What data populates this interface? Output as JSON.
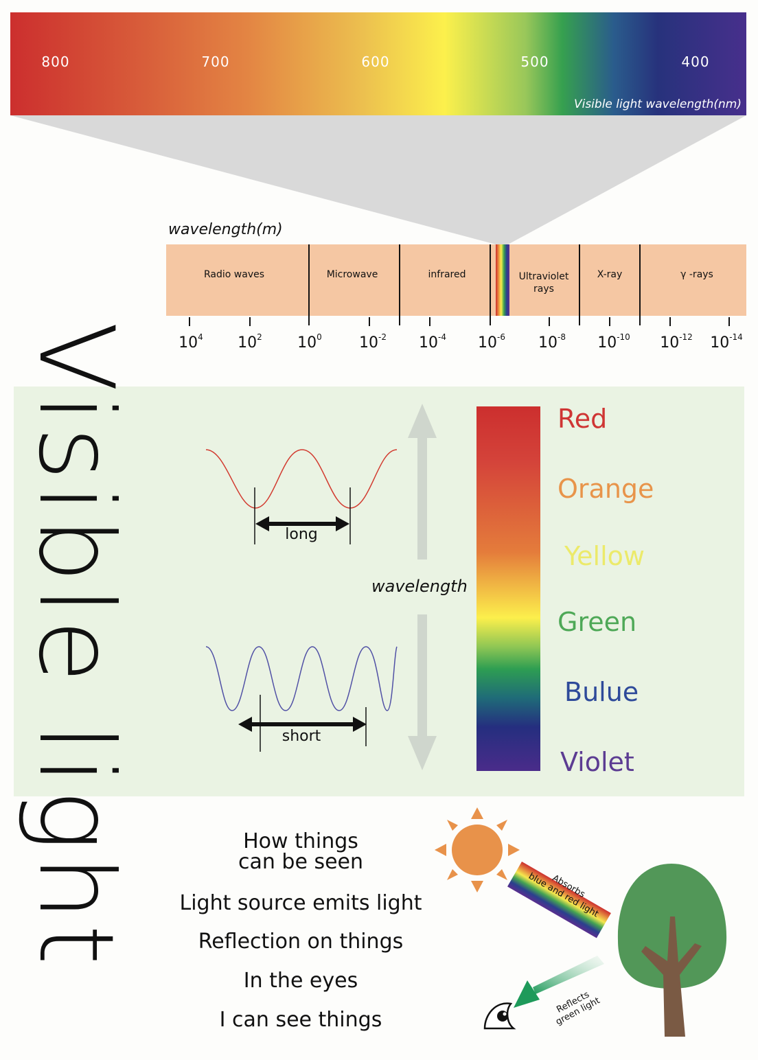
{
  "title": "Visible light",
  "visible_spectrum": {
    "ticks": [
      "800",
      "700",
      "600",
      "500",
      "400"
    ],
    "label": "Visible light wavelength(nm)"
  },
  "em_spectrum": {
    "axis_title": "wavelength(m)",
    "bands": [
      "Radio waves",
      "Microwave",
      "infrared",
      "Ultraviolet rays",
      "X-ray",
      "γ -rays"
    ],
    "exponents": [
      {
        "base": "10",
        "exp": "4"
      },
      {
        "base": "10",
        "exp": "2"
      },
      {
        "base": "10",
        "exp": "0"
      },
      {
        "base": "10",
        "exp": "-2"
      },
      {
        "base": "10",
        "exp": "-4"
      },
      {
        "base": "10",
        "exp": "-6"
      },
      {
        "base": "10",
        "exp": "-8"
      },
      {
        "base": "10",
        "exp": "-10"
      },
      {
        "base": "10",
        "exp": "-12"
      },
      {
        "base": "10",
        "exp": "-14"
      }
    ]
  },
  "wavelength_panel": {
    "center_label": "wavelength",
    "long_label": "long",
    "short_label": "short",
    "colors": [
      {
        "name": "Red",
        "color": "#cf3534"
      },
      {
        "name": "Orange",
        "color": "#e8944a"
      },
      {
        "name": "Yellow",
        "color": "#ecea6a"
      },
      {
        "name": "Green",
        "color": "#4ea857"
      },
      {
        "name": "Bulue",
        "color": "#2e4a9a"
      },
      {
        "name": "Violet",
        "color": "#5c3c92"
      }
    ]
  },
  "how_seen": {
    "heading_line1": "How things",
    "heading_line2": "can be seen",
    "steps": [
      "Light source emits light",
      "Reflection on things",
      "In the eyes",
      "I can see things"
    ],
    "absorbs_line1": "Absorbs",
    "absorbs_line2": "blue and red light",
    "reflects_line1": "Reflects",
    "reflects_line2": "green light"
  },
  "colors": {
    "panel_bg": "#eaf3e3",
    "band_bg": "#f5c7a3",
    "sun": "#e8924a",
    "tree_crown": "#529758",
    "trunk": "#7a5a44"
  }
}
